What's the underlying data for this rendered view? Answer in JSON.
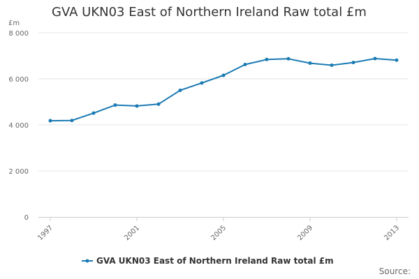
{
  "chart_data": {
    "type": "line",
    "title": "GVA UKN03 East of Northern Ireland Raw total £m",
    "ylabel": "£m",
    "xlabel": "",
    "ylim": [
      0,
      8000
    ],
    "yticks": [
      0,
      2000,
      4000,
      6000,
      8000
    ],
    "ytick_labels": [
      "0",
      "2 000",
      "4 000",
      "6 000",
      "8 000"
    ],
    "xlim": [
      1997,
      2013
    ],
    "xticks": [
      1997,
      2001,
      2005,
      2009,
      2013
    ],
    "xtick_labels": [
      "1997",
      "2001",
      "2005",
      "2009",
      "2013"
    ],
    "grid": true,
    "legend_position": "bottom",
    "series": [
      {
        "name": "GVA UKN03 East of Northern Ireland Raw total £m",
        "color": "#1a7ab3",
        "x": [
          1997,
          1998,
          1999,
          2000,
          2001,
          2002,
          2003,
          2004,
          2005,
          2006,
          2007,
          2008,
          2009,
          2010,
          2011,
          2012,
          2013
        ],
        "values": [
          4180,
          4190,
          4510,
          4860,
          4820,
          4900,
          5500,
          5820,
          6150,
          6620,
          6840,
          6870,
          6680,
          6590,
          6710,
          6880,
          6810
        ]
      }
    ],
    "source_label": "Source:"
  }
}
